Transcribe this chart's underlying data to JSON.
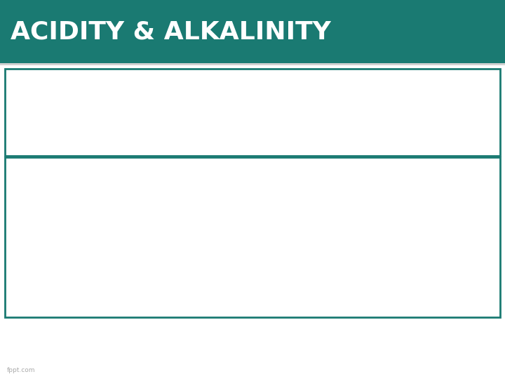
{
  "title": "ACIDITY & ALKALINITY",
  "title_bg": "#1a7a72",
  "title_color": "#ffffff",
  "bg_color": "#ffffff",
  "border_color": "#1a7a72",
  "text_color": "#1a1a1a",
  "blue_color": "#4169b8",
  "footer": "fppt.com",
  "footer_color": "#aaaaaa"
}
